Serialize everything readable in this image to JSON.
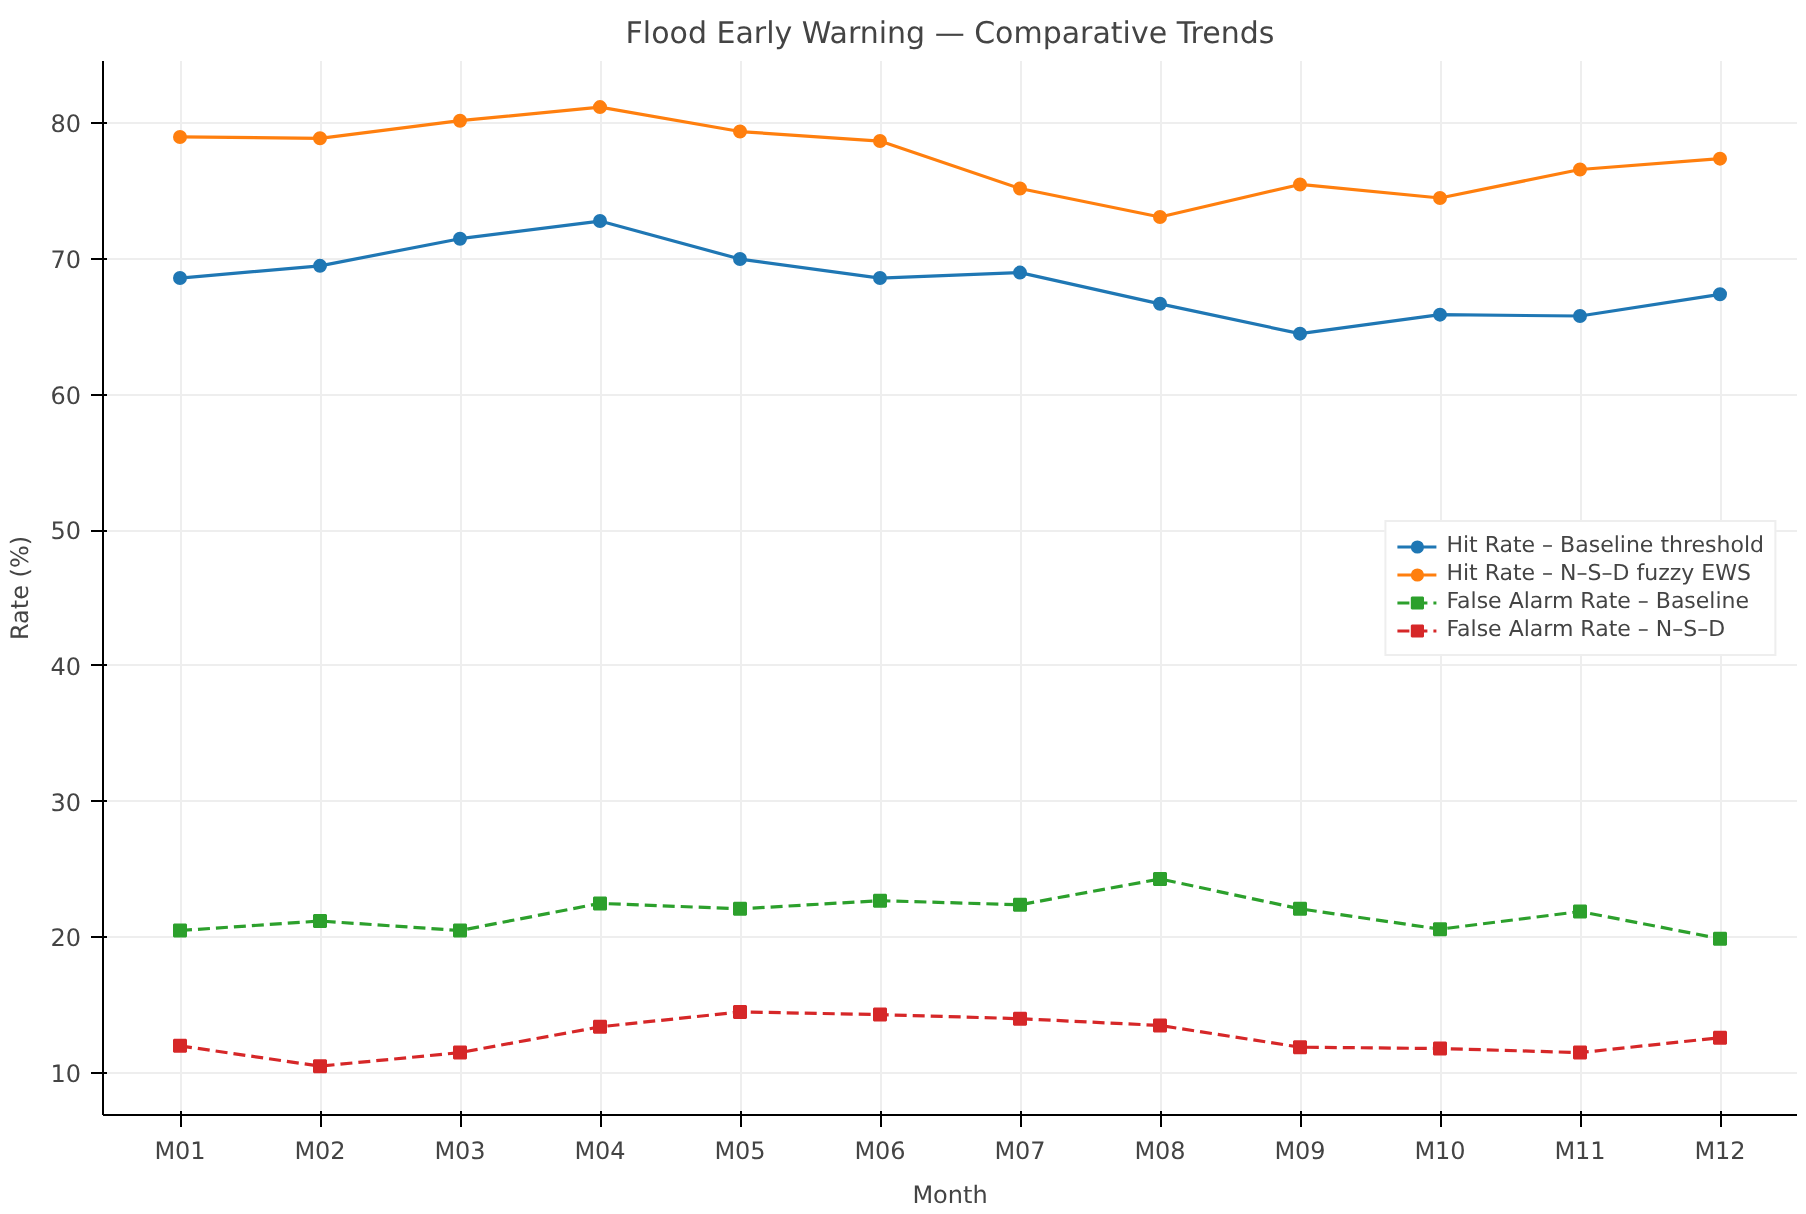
{
  "chart_data": {
    "type": "line",
    "title": "Flood Early Warning — Comparative Trends",
    "xlabel": "Month",
    "ylabel": "Rate (%)",
    "categories": [
      "M01",
      "M02",
      "M03",
      "M04",
      "M05",
      "M06",
      "M07",
      "M08",
      "M09",
      "M10",
      "M11",
      "M12"
    ],
    "ylim": [
      6.9,
      84.6
    ],
    "yticks": [
      10,
      20,
      30,
      40,
      50,
      60,
      70,
      80
    ],
    "grid": true,
    "legend": "right",
    "series": [
      {
        "name": "Hit Rate – Baseline threshold",
        "color": "#1f77b4",
        "marker": "circle",
        "line_style": "solid",
        "values": [
          68.6,
          69.5,
          71.5,
          72.8,
          70.0,
          68.6,
          69.0,
          66.7,
          64.5,
          65.9,
          65.8,
          67.4
        ]
      },
      {
        "name": "Hit Rate – N–S–D fuzzy EWS",
        "color": "#ff7f0e",
        "marker": "circle",
        "line_style": "solid",
        "values": [
          79.0,
          78.9,
          80.2,
          81.2,
          79.4,
          78.7,
          75.2,
          73.1,
          75.5,
          74.5,
          76.6,
          77.4
        ]
      },
      {
        "name": "False Alarm Rate – Baseline",
        "color": "#2ca02c",
        "marker": "square",
        "line_style": "dashed",
        "values": [
          20.5,
          21.2,
          20.5,
          22.5,
          22.1,
          22.7,
          22.4,
          24.3,
          22.1,
          20.6,
          21.9,
          19.9
        ]
      },
      {
        "name": "False Alarm Rate – N–S–D",
        "color": "#d62728",
        "marker": "square",
        "line_style": "dashed",
        "values": [
          12.0,
          10.5,
          11.5,
          13.4,
          14.5,
          14.3,
          14.0,
          13.5,
          11.9,
          11.8,
          11.5,
          12.6
        ]
      }
    ]
  }
}
